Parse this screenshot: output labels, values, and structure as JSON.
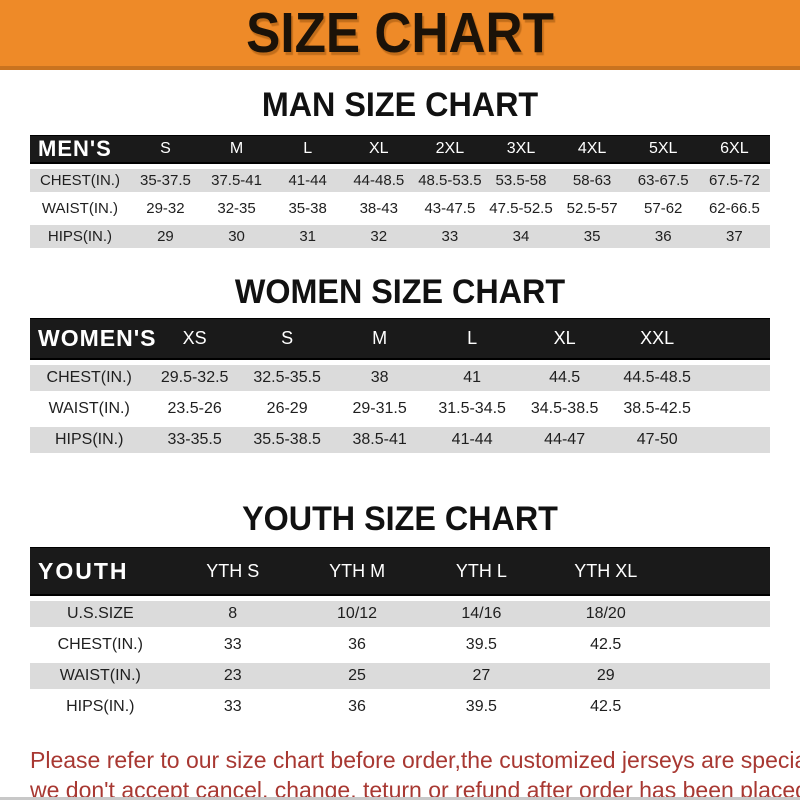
{
  "theme": {
    "banner_bg": "#EE8A28",
    "banner_border": "#c9731f",
    "header_bar_bg": "#1a1a1a",
    "header_text": "#ffffff",
    "stripe_bg": "#dbdbdb",
    "body_text": "#1f1f1f",
    "footer_text": "#a83832",
    "title_text": "#111111"
  },
  "banner": {
    "title": "SIZE CHART"
  },
  "sections": [
    {
      "id": "men",
      "title": "MAN SIZE CHART",
      "group_label": "MEN'S",
      "columns": [
        "S",
        "M",
        "L",
        "XL",
        "2XL",
        "3XL",
        "4XL",
        "5XL",
        "6XL"
      ],
      "rows": [
        {
          "label": "CHEST(IN.)",
          "values": [
            "35-37.5",
            "37.5-41",
            "41-44",
            "44-48.5",
            "48.5-53.5",
            "53.5-58",
            "58-63",
            "63-67.5",
            "67.5-72"
          ]
        },
        {
          "label": "WAIST(IN.)",
          "values": [
            "29-32",
            "32-35",
            "35-38",
            "38-43",
            "43-47.5",
            "47.5-52.5",
            "52.5-57",
            "57-62",
            "62-66.5"
          ]
        },
        {
          "label": "HIPS(IN.)",
          "values": [
            "29",
            "30",
            "31",
            "32",
            "33",
            "34",
            "35",
            "36",
            "37"
          ]
        }
      ],
      "spacer": false
    },
    {
      "id": "women",
      "title": "WOMEN SIZE CHART",
      "group_label": "WOMEN'S",
      "columns": [
        "XS",
        "S",
        "M",
        "L",
        "XL",
        "XXL"
      ],
      "rows": [
        {
          "label": "CHEST(IN.)",
          "values": [
            "29.5-32.5",
            "32.5-35.5",
            "38",
            "41",
            "44.5",
            "44.5-48.5"
          ]
        },
        {
          "label": "WAIST(IN.)",
          "values": [
            "23.5-26",
            "26-29",
            "29-31.5",
            "31.5-34.5",
            "34.5-38.5",
            "38.5-42.5"
          ]
        },
        {
          "label": "HIPS(IN.)",
          "values": [
            "33-35.5",
            "35.5-38.5",
            "38.5-41",
            "41-44",
            "44-47",
            "47-50"
          ]
        }
      ],
      "spacer": true
    },
    {
      "id": "youth",
      "title": "YOUTH SIZE CHART",
      "group_label": "YOUTH",
      "columns": [
        "YTH S",
        "YTH M",
        "YTH L",
        "YTH XL"
      ],
      "rows": [
        {
          "label": "U.S.SIZE",
          "values": [
            "8",
            "10/12",
            "14/16",
            "18/20"
          ]
        },
        {
          "label": "CHEST(IN.)",
          "values": [
            "33",
            "36",
            "39.5",
            "42.5"
          ]
        },
        {
          "label": "WAIST(IN.)",
          "values": [
            "23",
            "25",
            "27",
            "29"
          ]
        },
        {
          "label": "HIPS(IN.)",
          "values": [
            "33",
            "36",
            "39.5",
            "42.5"
          ]
        }
      ],
      "spacer": true
    }
  ],
  "footer": {
    "lines": [
      "Please refer to our size chart before order,the customized jerseys are special products,",
      "we don't accept cancel, change, teturn or refund after order has been placed!"
    ]
  }
}
